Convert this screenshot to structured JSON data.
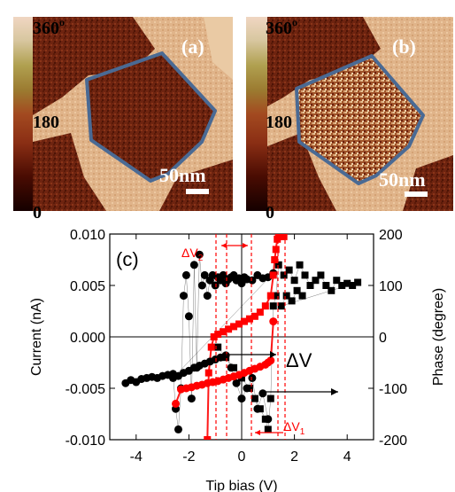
{
  "colors": {
    "pfm_dark": "#3a0800",
    "pfm_mid": "#9a3a1c",
    "pfm_light": "#e2b088",
    "pfm_pale": "#f4dcc0",
    "domain_outline": "#4a6a94",
    "current_series": "#000000",
    "phase_series": "#ff0000"
  },
  "maps": [
    {
      "label": "(a)",
      "colorbar_top": "360",
      "colorbar_top_sup": "o",
      "colorbar_mid": "180",
      "colorbar_bottom": "0",
      "scalebar": "50nm"
    },
    {
      "label": "(b)",
      "colorbar_top": "360",
      "colorbar_top_sup": "o",
      "colorbar_mid": "180",
      "colorbar_bottom": "0",
      "scalebar": "50nm"
    }
  ],
  "chart_data": {
    "type": "scatter",
    "panel_label": "(c)",
    "xlabel": "Tip bias (V)",
    "ylabel_left": "Current (nA)",
    "ylabel_right": "Phase (degree)",
    "xlim": [
      -5,
      5
    ],
    "ylim_left": [
      -0.01,
      0.01
    ],
    "ylim_right": [
      -200,
      200
    ],
    "xticks": [
      "-4",
      "-2",
      "0",
      "2",
      "4"
    ],
    "yticks_left": [
      "0.010",
      "0.005",
      "0.000",
      "-0.005",
      "-0.010"
    ],
    "yticks_right": [
      "200",
      "100",
      "0",
      "-100",
      "-200"
    ],
    "annotations": {
      "delta_v2": "ΔV",
      "delta_v2_sub": "2",
      "delta_v": "ΔV",
      "delta_v1": "ΔV",
      "delta_v1_sub": "1"
    },
    "series": [
      {
        "axis": "left",
        "marker": "circle",
        "x": [
          -4.4,
          -4.2,
          -4.0,
          -3.8,
          -3.6,
          -3.4,
          -3.2,
          -3.0,
          -2.8,
          -2.6,
          -2.5,
          -2.4,
          -2.3,
          -2.2,
          -2.1,
          -2.0,
          -1.9,
          -1.8,
          -1.7,
          -1.6,
          -1.5,
          -1.4,
          -1.3,
          -1.2,
          -1.1,
          -1.0,
          -0.9,
          -0.8,
          -0.7,
          -0.6,
          -0.5,
          -0.4,
          -0.3,
          -0.2,
          -0.1,
          0.0,
          0.1,
          0.2,
          0.4,
          0.6,
          0.8,
          1.0,
          1.2,
          -2.6,
          -2.4,
          -2.2,
          -2.0,
          -1.8,
          -1.6,
          -1.4,
          -1.2,
          -1.0,
          -0.8,
          -0.6,
          -0.4,
          -0.2,
          0.0,
          0.2,
          0.4,
          0.6,
          0.8,
          1.0
        ],
        "y": [
          -0.0045,
          -0.0042,
          -0.0044,
          -0.0041,
          -0.004,
          -0.0039,
          -0.004,
          -0.0038,
          -0.0037,
          -0.0036,
          -0.007,
          -0.009,
          -0.005,
          0.004,
          0.006,
          0.002,
          -0.006,
          0.007,
          -0.003,
          0.008,
          0.005,
          0.006,
          0.004,
          0.0055,
          0.006,
          0.005,
          0.0058,
          0.0055,
          0.006,
          0.0052,
          0.0056,
          0.0058,
          0.006,
          0.0055,
          0.0057,
          0.0052,
          0.0058,
          0.0056,
          0.0055,
          0.006,
          0.0057,
          0.0058,
          0.0062,
          -0.004,
          -0.0038,
          -0.0035,
          -0.0033,
          -0.003,
          -0.0028,
          -0.0026,
          -0.0024,
          -0.0022,
          -0.002,
          -0.0018,
          -0.003,
          -0.0045,
          -0.006,
          -0.005,
          -0.004,
          -0.007,
          -0.0055,
          -0.008
        ]
      },
      {
        "axis": "left",
        "marker": "square",
        "x": [
          -0.9,
          -0.6,
          -0.3,
          0.0,
          0.3,
          0.5,
          0.7,
          0.9,
          1.0,
          1.1,
          1.2,
          1.3,
          1.4,
          1.6,
          1.8,
          2.0,
          2.2,
          2.4,
          2.6,
          2.8,
          3.0,
          3.2,
          3.4,
          3.6,
          3.8,
          4.0,
          4.2,
          4.4,
          1.5,
          1.7,
          1.9,
          2.1,
          2.3
        ],
        "y": [
          -0.001,
          -0.002,
          -0.003,
          -0.004,
          -0.005,
          -0.006,
          -0.007,
          -0.008,
          -0.009,
          -0.006,
          0.003,
          0.004,
          0.007,
          0.006,
          0.0065,
          0.0055,
          0.007,
          0.006,
          0.005,
          0.0055,
          0.006,
          0.005,
          0.0045,
          0.0055,
          0.005,
          0.0052,
          0.005,
          0.0053,
          0.003,
          0.004,
          0.0035,
          0.0045,
          0.004
        ]
      },
      {
        "axis": "right",
        "marker": "circle",
        "x": [
          -2.5,
          -2.3,
          -2.1,
          -1.9,
          -1.7,
          -1.5,
          -1.3,
          -1.1,
          -0.9,
          -0.7,
          -0.5,
          -0.3,
          -0.1,
          0.1,
          0.3,
          0.5,
          0.7,
          0.9,
          1.0,
          1.1,
          1.2
        ],
        "y": [
          -130,
          -102,
          -100,
          -98,
          -95,
          -93,
          -90,
          -88,
          -86,
          -83,
          -80,
          -77,
          -74,
          -70,
          -66,
          -62,
          -58,
          -54,
          -50,
          -46,
          30
        ]
      },
      {
        "axis": "right",
        "marker": "square",
        "x": [
          -1.3,
          -1.25,
          -1.15,
          -1.05,
          -0.9,
          -0.7,
          -0.5,
          -0.3,
          -0.1,
          0.1,
          0.3,
          0.5,
          0.7,
          0.9,
          1.1,
          1.2,
          1.25,
          1.3,
          1.35,
          1.4,
          1.5,
          1.6
        ],
        "y": [
          -200,
          -70,
          -20,
          0,
          5,
          10,
          15,
          20,
          25,
          30,
          35,
          40,
          48,
          60,
          80,
          120,
          150,
          170,
          190,
          195,
          195,
          195
        ]
      }
    ]
  }
}
